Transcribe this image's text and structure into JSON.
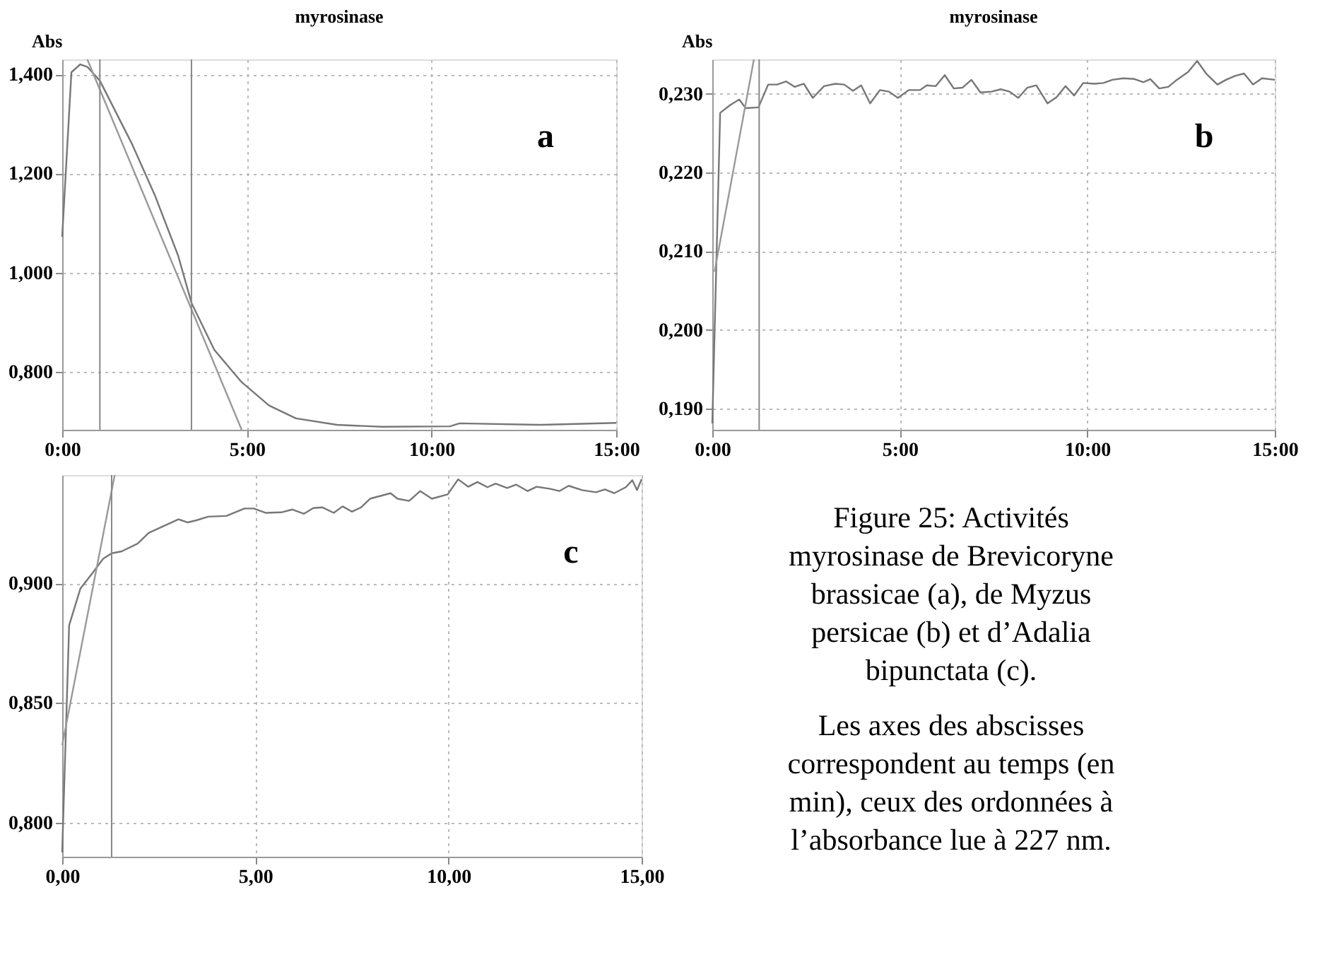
{
  "chart_data": [
    {
      "type": "line",
      "title": "myrosinase",
      "ylabel": "Abs",
      "annotations": [
        "a"
      ],
      "grid": true,
      "line_style": "solid",
      "xlim": [
        0,
        15
      ],
      "ylim": [
        0.683,
        1.43
      ],
      "xticks": [
        {
          "value": 0,
          "label": "0:00"
        },
        {
          "value": 5,
          "label": "5:00"
        },
        {
          "value": 10,
          "label": "10:00"
        },
        {
          "value": 15,
          "label": "15:00"
        }
      ],
      "yticks": [
        {
          "value": 0.8,
          "label": "0,800"
        },
        {
          "value": 1.0,
          "label": "1,000"
        },
        {
          "value": 1.2,
          "label": "1,200"
        },
        {
          "value": 1.4,
          "label": "1,400"
        }
      ],
      "series": [
        {
          "color": "#777777",
          "x": [
            0,
            0.25,
            0.49,
            0.68,
            1.02,
            1.9,
            2.52,
            3.14,
            3.5,
            4.12,
            4.86,
            5.6,
            6.33,
            7.44,
            8.67,
            10.5,
            10.76,
            12.97,
            15
          ],
          "values": [
            1.072,
            1.404,
            1.42,
            1.415,
            1.387,
            1.258,
            1.154,
            1.034,
            0.939,
            0.844,
            0.779,
            0.732,
            0.706,
            0.693,
            0.689,
            0.69,
            0.696,
            0.693,
            0.697
          ]
        },
        {
          "color": "#999999",
          "x": [
            0.68,
            4.86
          ],
          "values": [
            1.43,
            0.683
          ]
        }
      ],
      "ref_lines": [
        {
          "axis": "x",
          "value": 1.02,
          "color": "#888888"
        },
        {
          "axis": "x",
          "value": 3.5,
          "color": "#888888"
        }
      ]
    },
    {
      "type": "line",
      "title": "myrosinase",
      "ylabel": "Abs",
      "annotations": [
        "b"
      ],
      "grid": true,
      "line_style": "solid",
      "xlim": [
        0,
        15
      ],
      "ylim": [
        0.1873,
        0.2344
      ],
      "xticks": [
        {
          "value": 0,
          "label": "0:00"
        },
        {
          "value": 5,
          "label": "5:00"
        },
        {
          "value": 10,
          "label": "10:00"
        },
        {
          "value": 15,
          "label": "15:00"
        }
      ],
      "yticks": [
        {
          "value": 0.19,
          "label": "0,190"
        },
        {
          "value": 0.2,
          "label": "0,200"
        },
        {
          "value": 0.21,
          "label": "0,210"
        },
        {
          "value": 0.22,
          "label": "0,220"
        },
        {
          "value": 0.23,
          "label": "0,230"
        }
      ],
      "series": [
        {
          "color": "#777777",
          "x": [
            0,
            0.21,
            0.48,
            0.72,
            0.89,
            1.23,
            1.49,
            1.73,
            1.97,
            2.2,
            2.44,
            2.68,
            2.98,
            3.28,
            3.52,
            3.75,
            3.97,
            4.21,
            4.47,
            4.71,
            4.95,
            5.24,
            5.54,
            5.72,
            5.96,
            6.2,
            6.44,
            6.67,
            6.91,
            7.15,
            7.45,
            7.69,
            7.93,
            8.16,
            8.4,
            8.64,
            8.94,
            9.18,
            9.42,
            9.65,
            9.89,
            10.19,
            10.43,
            10.67,
            10.96,
            11.26,
            11.5,
            11.68,
            11.92,
            12.16,
            12.39,
            12.69,
            12.93,
            13.17,
            13.47,
            13.7,
            13.94,
            14.18,
            14.42,
            14.66,
            15
          ],
          "values": [
            0.1881,
            0.2276,
            0.2286,
            0.2293,
            0.2282,
            0.2283,
            0.2312,
            0.2312,
            0.2316,
            0.2309,
            0.2313,
            0.2295,
            0.231,
            0.2313,
            0.2312,
            0.2304,
            0.2311,
            0.2288,
            0.2305,
            0.2303,
            0.2295,
            0.2305,
            0.2305,
            0.2311,
            0.231,
            0.2324,
            0.2307,
            0.2308,
            0.2318,
            0.2302,
            0.2303,
            0.2306,
            0.2303,
            0.2295,
            0.2308,
            0.2311,
            0.2288,
            0.2296,
            0.231,
            0.2298,
            0.2314,
            0.2313,
            0.2314,
            0.2318,
            0.232,
            0.2319,
            0.2315,
            0.2319,
            0.2307,
            0.2309,
            0.2318,
            0.2328,
            0.2342,
            0.2326,
            0.2312,
            0.2318,
            0.2323,
            0.2326,
            0.2312,
            0.232,
            0.2318
          ]
        },
        {
          "color": "#999999",
          "x": [
            0.06,
            1.11
          ],
          "values": [
            0.2074,
            0.2344
          ]
        }
      ],
      "ref_lines": [
        {
          "axis": "x",
          "value": 1.25,
          "color": "#888888"
        }
      ]
    },
    {
      "type": "line",
      "annotations": [
        "c"
      ],
      "grid": true,
      "line_style": "solid",
      "xlim": [
        0,
        15
      ],
      "ylim": [
        0.7857,
        0.9452
      ],
      "xticks": [
        {
          "value": 0,
          "label": "0,00"
        },
        {
          "value": 5,
          "label": "5,00"
        },
        {
          "value": 10,
          "label": "10,00"
        },
        {
          "value": 15,
          "label": "15,00"
        }
      ],
      "yticks": [
        {
          "value": 0.8,
          "label": "0,800"
        },
        {
          "value": 0.85,
          "label": "0,850"
        },
        {
          "value": 0.9,
          "label": "0,900"
        }
      ],
      "series": [
        {
          "color": "#777777",
          "x": [
            0,
            0.18,
            0.47,
            0.77,
            1.06,
            1.28,
            1.54,
            1.95,
            2.24,
            2.6,
            3.01,
            3.25,
            3.48,
            3.78,
            4.25,
            4.72,
            4.96,
            5.26,
            5.67,
            5.96,
            6.26,
            6.5,
            6.73,
            7.03,
            7.26,
            7.5,
            7.74,
            7.97,
            8.5,
            8.68,
            8.98,
            9.27,
            9.57,
            9.98,
            10.25,
            10.51,
            10.75,
            11.01,
            11.22,
            11.52,
            11.75,
            12.05,
            12.28,
            12.64,
            12.87,
            13.11,
            13.46,
            13.82,
            14.05,
            14.29,
            14.59,
            14.76,
            14.88,
            15
          ],
          "values": [
            0.7875,
            0.8824,
            0.8977,
            0.9039,
            0.9102,
            0.9125,
            0.9133,
            0.9165,
            0.921,
            0.9237,
            0.9267,
            0.9254,
            0.9263,
            0.9278,
            0.9281,
            0.9312,
            0.9312,
            0.9294,
            0.9296,
            0.9308,
            0.929,
            0.9314,
            0.9317,
            0.9294,
            0.9321,
            0.9299,
            0.9317,
            0.9353,
            0.9376,
            0.9353,
            0.9344,
            0.9385,
            0.9353,
            0.9371,
            0.9434,
            0.9403,
            0.9423,
            0.9401,
            0.9416,
            0.9398,
            0.9412,
            0.9385,
            0.9403,
            0.9394,
            0.9385,
            0.9407,
            0.9389,
            0.938,
            0.9392,
            0.9376,
            0.9401,
            0.943,
            0.9389,
            0.9434
          ]
        },
        {
          "color": "#999999",
          "x": [
            0,
            1.36
          ],
          "values": [
            0.8323,
            0.9452
          ]
        }
      ],
      "ref_lines": [
        {
          "axis": "x",
          "value": 1.28,
          "color": "#888888"
        }
      ]
    },
    {
      "type": "other",
      "title": "Figure 25: Activités myrosinase de Brevicoryne brassicae (a), de Myzus persicae (b) et d’Adalia bipunctata (c).",
      "annotations": [
        "Les axes des abscisses correspondent au temps (en min), ceux des ordonnées à l’absorbance lue à 227 nm."
      ]
    }
  ]
}
